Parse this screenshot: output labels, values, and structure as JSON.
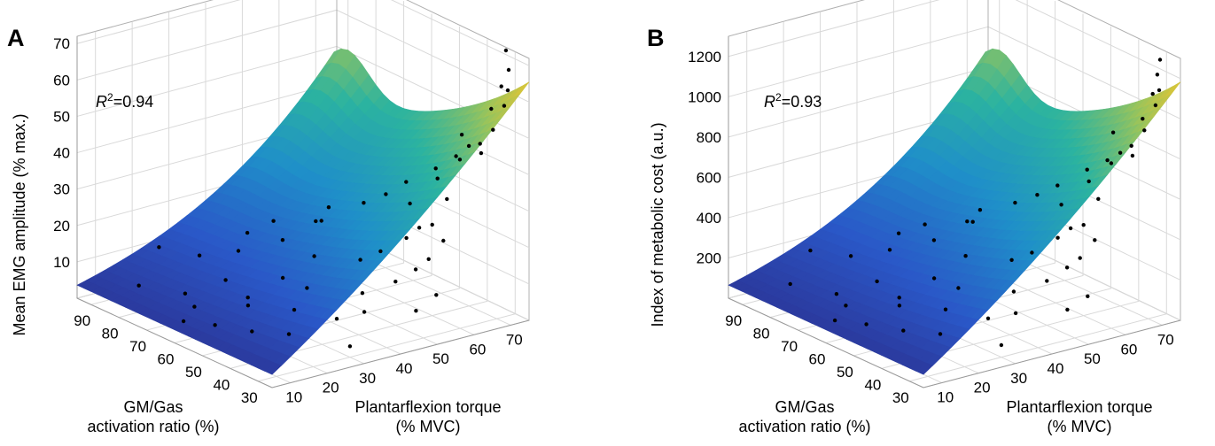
{
  "chart_data": [
    {
      "panel": "A",
      "type": "surface",
      "zlabel": "Mean EMG amplitude (% max.)",
      "xlabel": "Plantarflexion torque\n(% MVC)",
      "ylabel": "GM/Gas\nactivation ratio (%)",
      "annotation_r": "R",
      "annotation_sup": "2",
      "annotation_val": "=0.94",
      "r_squared": 0.94,
      "xticks": [
        "10",
        "20",
        "30",
        "40",
        "50",
        "60",
        "70"
      ],
      "yticks": [
        "90",
        "80",
        "70",
        "60",
        "50",
        "40",
        "30"
      ],
      "zticks": [
        "10",
        "20",
        "30",
        "40",
        "50",
        "60",
        "70"
      ],
      "xlim": [
        5,
        75
      ],
      "ylim": [
        25,
        95
      ],
      "zlim": [
        0,
        72
      ],
      "surface_colormap": [
        "#2c2f8f",
        "#2a58c8",
        "#1f8fc9",
        "#2bb3a0",
        "#9cc45a",
        "#f5c52a"
      ],
      "points": [
        [
          22,
          88,
          12
        ],
        [
          15,
          86,
          4
        ],
        [
          30,
          84,
          9
        ],
        [
          33,
          74,
          13
        ],
        [
          28,
          72,
          7
        ],
        [
          42,
          70,
          15
        ],
        [
          40,
          80,
          14
        ],
        [
          38,
          68,
          22
        ],
        [
          48,
          66,
          20
        ],
        [
          50,
          64,
          24
        ],
        [
          45,
          60,
          23
        ],
        [
          55,
          58,
          26
        ],
        [
          40,
          56,
          16
        ],
        [
          35,
          52,
          10
        ],
        [
          58,
          54,
          29
        ],
        [
          62,
          52,
          32
        ],
        [
          60,
          48,
          28
        ],
        [
          66,
          46,
          34
        ],
        [
          64,
          44,
          38
        ],
        [
          68,
          42,
          41
        ],
        [
          70,
          40,
          44
        ],
        [
          66,
          38,
          42
        ],
        [
          70,
          36,
          46
        ],
        [
          72,
          34,
          50
        ],
        [
          68,
          33,
          45
        ],
        [
          62,
          32,
          52
        ],
        [
          72,
          30,
          58
        ],
        [
          73,
          30,
          62
        ],
        [
          74,
          31,
          67
        ],
        [
          74,
          32,
          72
        ],
        [
          72,
          31,
          63
        ],
        [
          70,
          32,
          57
        ],
        [
          25,
          60,
          5
        ],
        [
          30,
          50,
          6
        ],
        [
          44,
          44,
          9
        ],
        [
          50,
          40,
          12
        ],
        [
          54,
          38,
          15
        ],
        [
          56,
          36,
          18
        ],
        [
          60,
          36,
          22
        ],
        [
          20,
          76,
          4
        ],
        [
          18,
          70,
          3
        ],
        [
          28,
          64,
          5
        ],
        [
          36,
          62,
          9
        ],
        [
          48,
          50,
          15
        ],
        [
          52,
          48,
          17
        ],
        [
          56,
          44,
          21
        ],
        [
          58,
          42,
          24
        ],
        [
          60,
          40,
          25
        ],
        [
          64,
          40,
          31
        ],
        [
          48,
          30,
          8
        ],
        [
          52,
          28,
          12
        ],
        [
          34,
          40,
          6
        ],
        [
          40,
          38,
          7
        ],
        [
          30,
          30,
          3
        ],
        [
          24,
          44,
          3
        ],
        [
          20,
          52,
          2
        ],
        [
          16,
          60,
          2
        ],
        [
          12,
          66,
          2
        ]
      ]
    },
    {
      "panel": "B",
      "type": "surface",
      "zlabel": "Index of metabolic cost (a.u.)",
      "xlabel": "Plantarflexion torque\n(% MVC)",
      "ylabel": "GM/Gas\nactivation ratio (%)",
      "annotation_r": "R",
      "annotation_sup": "2",
      "annotation_val": "=0.93",
      "r_squared": 0.93,
      "xticks": [
        "10",
        "20",
        "30",
        "40",
        "50",
        "60",
        "70"
      ],
      "yticks": [
        "90",
        "80",
        "70",
        "60",
        "50",
        "40",
        "30"
      ],
      "zticks": [
        "200",
        "400",
        "600",
        "800",
        "1000",
        "1200"
      ],
      "xlim": [
        5,
        75
      ],
      "ylim": [
        25,
        95
      ],
      "zlim": [
        0,
        1300
      ],
      "surface_colormap": [
        "#2c2f8f",
        "#2a58c8",
        "#1f8fc9",
        "#2bb3a0",
        "#9cc45a",
        "#f5c52a"
      ],
      "points": [
        [
          22,
          88,
          200
        ],
        [
          15,
          86,
          80
        ],
        [
          30,
          84,
          160
        ],
        [
          33,
          74,
          240
        ],
        [
          28,
          72,
          120
        ],
        [
          42,
          70,
          270
        ],
        [
          40,
          80,
          250
        ],
        [
          38,
          68,
          380
        ],
        [
          48,
          66,
          360
        ],
        [
          50,
          64,
          420
        ],
        [
          45,
          60,
          410
        ],
        [
          55,
          58,
          470
        ],
        [
          40,
          56,
          290
        ],
        [
          35,
          52,
          180
        ],
        [
          58,
          54,
          520
        ],
        [
          62,
          52,
          560
        ],
        [
          60,
          48,
          500
        ],
        [
          66,
          46,
          600
        ],
        [
          64,
          44,
          680
        ],
        [
          68,
          42,
          720
        ],
        [
          70,
          40,
          760
        ],
        [
          66,
          38,
          740
        ],
        [
          70,
          36,
          820
        ],
        [
          72,
          34,
          900
        ],
        [
          68,
          33,
          800
        ],
        [
          62,
          32,
          950
        ],
        [
          72,
          30,
          1050
        ],
        [
          73,
          30,
          1120
        ],
        [
          74,
          31,
          1260
        ],
        [
          74,
          32,
          1180
        ],
        [
          72,
          31,
          1100
        ],
        [
          70,
          32,
          980
        ],
        [
          25,
          60,
          90
        ],
        [
          30,
          50,
          110
        ],
        [
          44,
          44,
          170
        ],
        [
          50,
          40,
          220
        ],
        [
          54,
          38,
          280
        ],
        [
          56,
          36,
          330
        ],
        [
          60,
          36,
          400
        ],
        [
          20,
          76,
          70
        ],
        [
          18,
          70,
          60
        ],
        [
          28,
          64,
          90
        ],
        [
          36,
          62,
          160
        ],
        [
          48,
          50,
          270
        ],
        [
          52,
          48,
          300
        ],
        [
          56,
          44,
          380
        ],
        [
          58,
          42,
          430
        ],
        [
          60,
          40,
          450
        ],
        [
          64,
          40,
          560
        ],
        [
          48,
          30,
          150
        ],
        [
          52,
          28,
          210
        ],
        [
          34,
          40,
          110
        ],
        [
          40,
          38,
          120
        ],
        [
          30,
          30,
          60
        ],
        [
          24,
          44,
          55
        ],
        [
          20,
          52,
          40
        ],
        [
          16,
          60,
          40
        ],
        [
          12,
          66,
          40
        ]
      ]
    }
  ]
}
